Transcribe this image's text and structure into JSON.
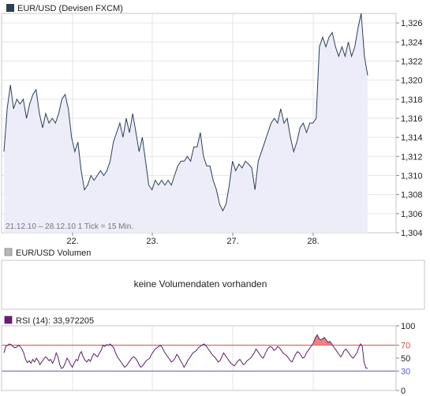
{
  "colors": {
    "price_line": "#2b3f57",
    "price_fill": "#ecedf9",
    "panel_border": "#c7c7c7",
    "grid": "#e6e6e6",
    "rsi_line": "#5a1f63",
    "rsi_70": "#d24a4a",
    "rsi_30": "#5b5bc8",
    "rsi_over_fill": "#f08080",
    "volume_box": "#b7b7b7",
    "rsi_box": "#6b1e73"
  },
  "price_panel": {
    "legend": "EUR/USD (Devisen FXCM)",
    "info": "21.12.10 – 28.12.10   1 Tick = 15 Min."
  },
  "volume_panel": {
    "legend": "EUR/USD Volumen",
    "message": "keine Volumendaten vorhanden"
  },
  "rsi_panel": {
    "legend": "RSI (14): 33,972205"
  },
  "chart_data": [
    {
      "type": "line",
      "x_tick_labels": [
        "22.",
        "23.",
        "27.",
        "28."
      ],
      "y_tick_labels": [
        "1,326",
        "1,324",
        "1,322",
        "1,320",
        "1,318",
        "1,316",
        "1,314",
        "1,312",
        "1,310",
        "1,308",
        "1,306",
        "1,304"
      ],
      "ylim": [
        1.304,
        1.327
      ],
      "grid": true,
      "series": [
        {
          "values": [
            1.3125,
            1.317,
            1.3195,
            1.317,
            1.318,
            1.3175,
            1.318,
            1.316,
            1.3175,
            1.3185,
            1.319,
            1.3165,
            1.315,
            1.3165,
            1.3155,
            1.316,
            1.3155,
            1.3165,
            1.318,
            1.3185,
            1.317,
            1.314,
            1.3125,
            1.3135,
            1.3105,
            1.3085,
            1.309,
            1.31,
            1.3095,
            1.31,
            1.3105,
            1.31,
            1.3105,
            1.3115,
            1.3135,
            1.3145,
            1.3155,
            1.314,
            1.316,
            1.3145,
            1.3165,
            1.3145,
            1.3125,
            1.314,
            1.3115,
            1.309,
            1.3085,
            1.3095,
            1.309,
            1.3095,
            1.309,
            1.3095,
            1.309,
            1.31,
            1.311,
            1.3115,
            1.3115,
            1.312,
            1.3115,
            1.313,
            1.313,
            1.3145,
            1.312,
            1.311,
            1.311,
            1.3095,
            1.3085,
            1.307,
            1.3063,
            1.307,
            1.309,
            1.3115,
            1.3105,
            1.3112,
            1.3108,
            1.3115,
            1.3112,
            1.3108,
            1.3085,
            1.3115,
            1.3125,
            1.3135,
            1.3145,
            1.3155,
            1.316,
            1.3155,
            1.317,
            1.3155,
            1.316,
            1.314,
            1.3125,
            1.3135,
            1.315,
            1.3155,
            1.3145,
            1.3155,
            1.3155,
            1.316,
            1.3235,
            1.3245,
            1.3235,
            1.3245,
            1.325,
            1.3235,
            1.3225,
            1.3235,
            1.3225,
            1.324,
            1.3225,
            1.3235,
            1.3255,
            1.327,
            1.3225,
            1.3205
          ]
        }
      ]
    },
    {
      "type": "line",
      "y_tick_labels": [
        "100",
        "70",
        "50",
        "30",
        "0"
      ],
      "ylim": [
        0,
        100
      ],
      "reference_lines": [
        70,
        30
      ],
      "series": [
        {
          "values": [
            58,
            68,
            70,
            72,
            71,
            68,
            66,
            67,
            70,
            68,
            64,
            58,
            48,
            43,
            46,
            42,
            48,
            44,
            50,
            46,
            40,
            44,
            48,
            52,
            50,
            46,
            48,
            42,
            48,
            58,
            52,
            40,
            34,
            36,
            42,
            50,
            46,
            40,
            36,
            42,
            48,
            46,
            56,
            60,
            52,
            47,
            44,
            48,
            45,
            52,
            57,
            54,
            52,
            58,
            62,
            70,
            68,
            71,
            70,
            72,
            69,
            66,
            58,
            52,
            48,
            44,
            40,
            36,
            38,
            42,
            46,
            50,
            52,
            50,
            46,
            40,
            36,
            38,
            42,
            46,
            48,
            50,
            56,
            60,
            64,
            66,
            68,
            70,
            66,
            60,
            56,
            52,
            48,
            44,
            46,
            50,
            56,
            52,
            46,
            42,
            36,
            40,
            46,
            50,
            54,
            58,
            60,
            62,
            66,
            68,
            70,
            72,
            70,
            66,
            62,
            58,
            54,
            52,
            48,
            44,
            46,
            52,
            58,
            54,
            50,
            46,
            42,
            40,
            38,
            42,
            46,
            48,
            44,
            40,
            42,
            46,
            48,
            50,
            54,
            58,
            64,
            60,
            56,
            52,
            50,
            56,
            62,
            66,
            68,
            66,
            62,
            64,
            68,
            66,
            62,
            58,
            56,
            54,
            50,
            46,
            44,
            50,
            56,
            60,
            58,
            54,
            50,
            52,
            58,
            62,
            66,
            70,
            74,
            82,
            86,
            80,
            78,
            80,
            82,
            78,
            74,
            76,
            72,
            68,
            64,
            60,
            56,
            52,
            56,
            62,
            64,
            60,
            56,
            52,
            50,
            54,
            58,
            66,
            72,
            68,
            44,
            35,
            34
          ]
        }
      ]
    }
  ]
}
